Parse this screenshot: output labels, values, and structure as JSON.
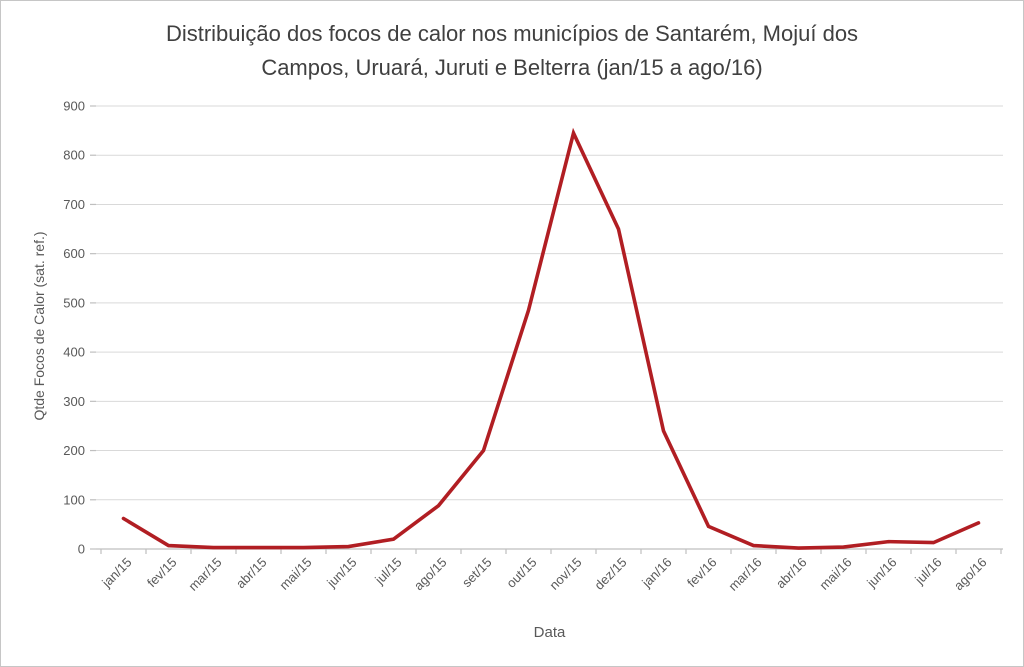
{
  "chart_data": {
    "type": "line",
    "title": "Distribuição dos focos de calor nos municípios de Santarém, Mojuí dos Campos, Uruará, Juruti e Belterra (jan/15 a ago/16)",
    "title_lines": [
      "Distribuição dos focos de calor nos municípios de Santarém, Mojuí dos",
      "Campos, Uruará, Juruti e Belterra (jan/15 a ago/16)"
    ],
    "xlabel": "Data",
    "ylabel": "Qtde Focos de Calor (sat. ref.)",
    "categories": [
      "jan/15",
      "fev/15",
      "mar/15",
      "abr/15",
      "mai/15",
      "jun/15",
      "jul/15",
      "ago/15",
      "set/15",
      "out/15",
      "nov/15",
      "dez/15",
      "jan/16",
      "fev/16",
      "mar/16",
      "abr/16",
      "mai/16",
      "jun/16",
      "jul/16",
      "ago/16"
    ],
    "values": [
      62,
      7,
      3,
      3,
      3,
      5,
      20,
      88,
      200,
      485,
      845,
      650,
      240,
      46,
      7,
      2,
      4,
      15,
      13,
      53
    ],
    "ylim": [
      0,
      900
    ],
    "ytick_step": 100,
    "yticks": [
      0,
      100,
      200,
      300,
      400,
      500,
      600,
      700,
      800,
      900
    ],
    "grid": true,
    "legend": "none",
    "colors": {
      "line": "#B11E23",
      "gridline": "#D9D9D9",
      "axis": "#BFBFBF",
      "title_text": "#404040",
      "tick_text": "#595959",
      "background": "#FFFFFF",
      "frame_border": "#C6C6C6"
    }
  }
}
